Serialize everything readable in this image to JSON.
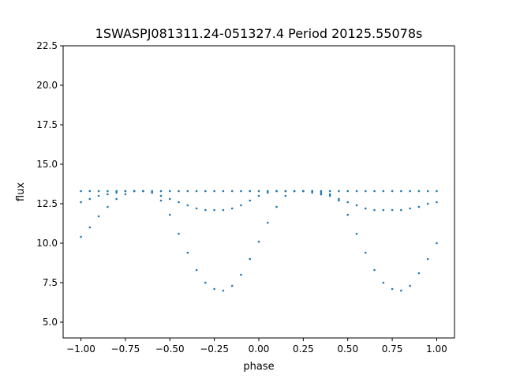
{
  "chart_data": {
    "type": "scatter",
    "title": "1SWASPJ081311.24-051327.4 Period 20125.55078s",
    "xlabel": "phase",
    "ylabel": "flux",
    "xlim": [
      -1.1,
      1.1
    ],
    "ylim": [
      4.0,
      22.5
    ],
    "x_ticks": [
      -1.0,
      -0.75,
      -0.5,
      -0.25,
      0.0,
      0.25,
      0.5,
      0.75,
      1.0
    ],
    "x_tick_labels": [
      "−1.00",
      "−0.75",
      "−0.50",
      "−0.25",
      "0.00",
      "0.25",
      "0.50",
      "0.75",
      "1.00"
    ],
    "y_ticks": [
      5.0,
      7.5,
      10.0,
      12.5,
      15.0,
      17.5,
      20.0,
      22.5
    ],
    "y_tick_labels": [
      "5.0",
      "7.5",
      "10.0",
      "12.5",
      "15.0",
      "17.5",
      "20.0",
      "22.5"
    ],
    "grid": false,
    "marker_color": "#1f77b4",
    "series": [
      {
        "x": [
          -1.0,
          -0.95,
          -0.9,
          -0.85,
          -0.8,
          -0.75,
          -0.7,
          -0.65,
          -0.6,
          -0.55,
          -0.5,
          -0.45,
          -0.4,
          -0.35,
          -0.3,
          -0.25,
          -0.2,
          -0.15,
          -0.1,
          -0.05,
          0.0,
          0.05,
          0.1,
          0.15,
          0.2,
          0.25,
          0.3,
          0.35,
          0.4,
          0.45,
          0.5,
          0.55,
          0.6,
          0.65,
          0.7,
          0.75,
          0.8,
          0.85,
          0.9,
          0.95,
          1.0
        ],
        "y": [
          13.3,
          13.3,
          13.3,
          13.3,
          13.3,
          13.3,
          13.3,
          13.3,
          13.3,
          13.3,
          13.3,
          13.3,
          13.3,
          13.3,
          13.3,
          13.3,
          13.3,
          13.3,
          13.3,
          13.3,
          13.3,
          13.3,
          13.3,
          13.3,
          13.3,
          13.3,
          13.3,
          13.3,
          13.3,
          13.3,
          13.3,
          13.3,
          13.3,
          13.3,
          13.3,
          13.3,
          13.3,
          13.3,
          13.3,
          13.3,
          13.3
        ]
      },
      {
        "x": [
          -1.0,
          -0.95,
          -0.9,
          -0.85,
          -0.8,
          -0.75,
          -0.7,
          -0.65,
          -0.6,
          -0.55,
          -0.5,
          -0.45,
          -0.4,
          -0.35,
          -0.3,
          -0.25,
          -0.2,
          -0.15,
          -0.1,
          -0.05,
          0.0,
          0.05,
          0.1,
          0.15,
          0.2,
          0.25,
          0.3,
          0.35,
          0.4,
          0.45,
          0.5,
          0.55,
          0.6,
          0.65,
          0.7,
          0.75,
          0.8,
          0.85,
          0.9,
          0.95,
          1.0
        ],
        "y": [
          10.4,
          11.0,
          11.7,
          12.3,
          12.8,
          13.1,
          13.3,
          13.3,
          13.2,
          12.7,
          11.8,
          10.6,
          9.4,
          8.3,
          7.5,
          7.1,
          7.0,
          7.3,
          8.0,
          9.0,
          10.1,
          11.3,
          12.3,
          13.0,
          13.3,
          13.3,
          13.3,
          13.2,
          13.1,
          12.7,
          11.8,
          10.6,
          9.4,
          8.3,
          7.5,
          7.1,
          7.0,
          7.3,
          8.1,
          9.0,
          10.0
        ]
      },
      {
        "x": [
          -1.0,
          -0.95,
          -0.9,
          -0.85,
          -0.8,
          -0.75,
          -0.7,
          -0.65,
          -0.6,
          -0.55,
          -0.5,
          -0.45,
          -0.4,
          -0.35,
          -0.3,
          -0.25,
          -0.2,
          -0.15,
          -0.1,
          -0.05,
          0.0,
          0.05,
          0.1,
          0.15,
          0.2,
          0.25,
          0.3,
          0.35,
          0.4,
          0.45,
          0.5,
          0.55,
          0.6,
          0.65,
          0.7,
          0.75,
          0.8,
          0.85,
          0.9,
          0.95,
          1.0
        ],
        "y": [
          12.6,
          12.8,
          13.0,
          13.1,
          13.2,
          13.3,
          13.3,
          13.3,
          13.2,
          13.0,
          12.8,
          12.6,
          12.4,
          12.2,
          12.1,
          12.1,
          12.1,
          12.2,
          12.4,
          12.7,
          13.0,
          13.2,
          13.3,
          13.3,
          13.3,
          13.3,
          13.2,
          13.1,
          13.0,
          12.8,
          12.6,
          12.4,
          12.2,
          12.1,
          12.1,
          12.1,
          12.1,
          12.2,
          12.3,
          12.5,
          12.6
        ]
      }
    ]
  }
}
